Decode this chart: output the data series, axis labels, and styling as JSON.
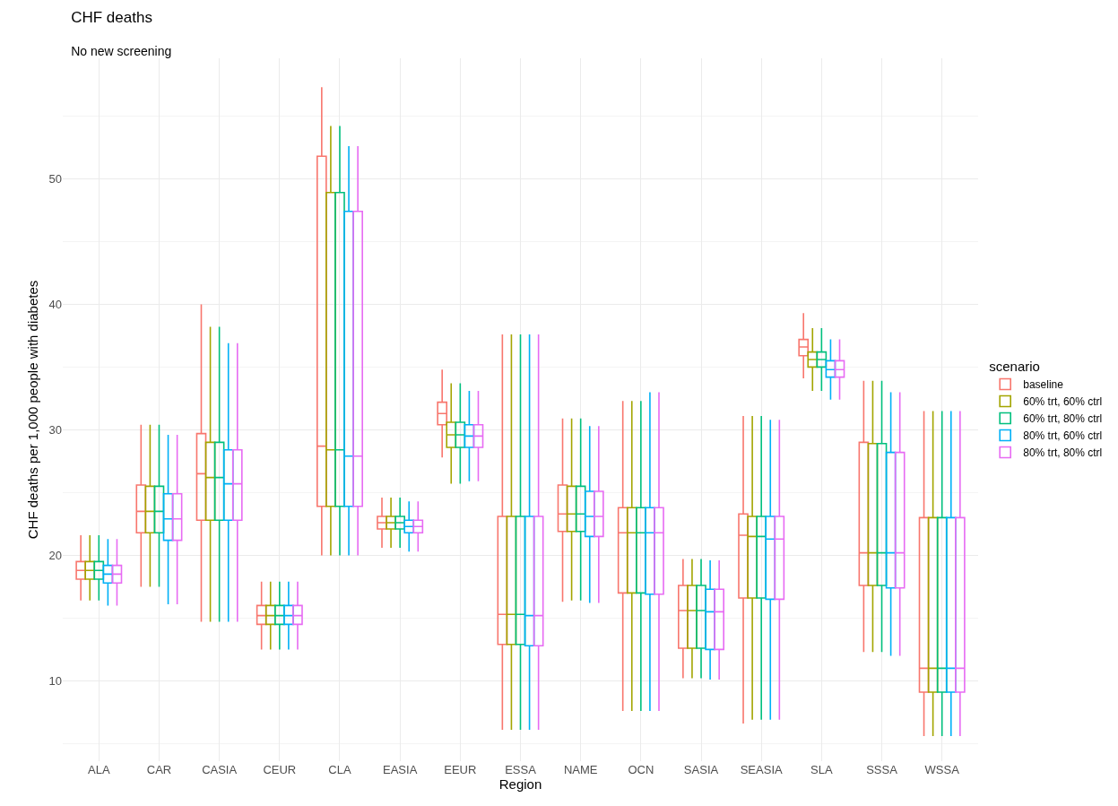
{
  "chart_data": {
    "type": "box",
    "title": "CHF deaths",
    "subtitle": "No new screening",
    "xlabel": "Region",
    "ylabel": "CHF deaths per 1,000 people with diabetes",
    "legend_title": "scenario",
    "legend": "right",
    "grid": true,
    "categories": [
      "ALA",
      "CAR",
      "CASIA",
      "CEUR",
      "CLA",
      "EASIA",
      "EEUR",
      "ESSA",
      "NAME",
      "OCN",
      "SASIA",
      "SEASIA",
      "SLA",
      "SSSA",
      "WSSA"
    ],
    "ylim": [
      3.6,
      59.6
    ],
    "yticks": [
      10,
      20,
      30,
      40,
      50
    ],
    "series": [
      {
        "name": "baseline",
        "color": "#f8766d",
        "boxes": [
          {
            "low": 16.4,
            "q1": 18.1,
            "median": 18.8,
            "q3": 19.5,
            "high": 21.6
          },
          {
            "low": 17.5,
            "q1": 21.8,
            "median": 23.5,
            "q3": 25.6,
            "high": 30.4
          },
          {
            "low": 14.7,
            "q1": 22.8,
            "median": 26.5,
            "q3": 29.7,
            "high": 40.0
          },
          {
            "low": 12.5,
            "q1": 14.5,
            "median": 15.2,
            "q3": 16.0,
            "high": 17.9
          },
          {
            "low": 20.0,
            "q1": 23.9,
            "median": 28.7,
            "q3": 51.8,
            "high": 57.3
          },
          {
            "low": 20.6,
            "q1": 22.1,
            "median": 22.6,
            "q3": 23.1,
            "high": 24.6
          },
          {
            "low": 27.8,
            "q1": 30.4,
            "median": 31.3,
            "q3": 32.2,
            "high": 34.8
          },
          {
            "low": 6.1,
            "q1": 12.9,
            "median": 15.3,
            "q3": 23.1,
            "high": 37.6
          },
          {
            "low": 16.3,
            "q1": 21.9,
            "median": 23.3,
            "q3": 25.6,
            "high": 30.9
          },
          {
            "low": 7.6,
            "q1": 17.0,
            "median": 21.8,
            "q3": 23.8,
            "high": 32.3
          },
          {
            "low": 10.2,
            "q1": 12.6,
            "median": 15.6,
            "q3": 17.6,
            "high": 19.7
          },
          {
            "low": 6.6,
            "q1": 16.6,
            "median": 21.6,
            "q3": 23.3,
            "high": 31.1
          },
          {
            "low": 34.1,
            "q1": 35.9,
            "median": 36.6,
            "q3": 37.2,
            "high": 39.3
          },
          {
            "low": 12.3,
            "q1": 17.6,
            "median": 20.2,
            "q3": 29.0,
            "high": 33.9
          },
          {
            "low": 5.6,
            "q1": 9.1,
            "median": 11.0,
            "q3": 23.0,
            "high": 31.5
          }
        ]
      },
      {
        "name": "60% trt, 60% ctrl",
        "color": "#a3a500",
        "boxes": [
          {
            "low": 16.4,
            "q1": 18.1,
            "median": 18.8,
            "q3": 19.5,
            "high": 21.6
          },
          {
            "low": 17.5,
            "q1": 21.8,
            "median": 23.5,
            "q3": 25.5,
            "high": 30.4
          },
          {
            "low": 14.7,
            "q1": 22.8,
            "median": 26.2,
            "q3": 29.0,
            "high": 38.2
          },
          {
            "low": 12.5,
            "q1": 14.5,
            "median": 15.2,
            "q3": 16.0,
            "high": 17.9
          },
          {
            "low": 20.0,
            "q1": 23.9,
            "median": 28.4,
            "q3": 48.9,
            "high": 54.2
          },
          {
            "low": 20.6,
            "q1": 22.1,
            "median": 22.6,
            "q3": 23.1,
            "high": 24.6
          },
          {
            "low": 25.7,
            "q1": 28.6,
            "median": 29.6,
            "q3": 30.6,
            "high": 33.7
          },
          {
            "low": 6.1,
            "q1": 12.9,
            "median": 15.3,
            "q3": 23.1,
            "high": 37.6
          },
          {
            "low": 16.4,
            "q1": 21.9,
            "median": 23.3,
            "q3": 25.5,
            "high": 30.9
          },
          {
            "low": 7.6,
            "q1": 17.0,
            "median": 21.8,
            "q3": 23.8,
            "high": 32.3
          },
          {
            "low": 10.2,
            "q1": 12.6,
            "median": 15.6,
            "q3": 17.6,
            "high": 19.7
          },
          {
            "low": 6.9,
            "q1": 16.6,
            "median": 21.5,
            "q3": 23.1,
            "high": 31.1
          },
          {
            "low": 33.1,
            "q1": 35.0,
            "median": 35.6,
            "q3": 36.2,
            "high": 38.1
          },
          {
            "low": 12.3,
            "q1": 17.6,
            "median": 20.2,
            "q3": 28.9,
            "high": 33.9
          },
          {
            "low": 5.6,
            "q1": 9.1,
            "median": 11.0,
            "q3": 23.0,
            "high": 31.5
          }
        ]
      },
      {
        "name": "60% trt, 80% ctrl",
        "color": "#00bf7d",
        "boxes": [
          {
            "low": 16.4,
            "q1": 18.1,
            "median": 18.8,
            "q3": 19.5,
            "high": 21.6
          },
          {
            "low": 17.5,
            "q1": 21.8,
            "median": 23.5,
            "q3": 25.5,
            "high": 30.4
          },
          {
            "low": 14.7,
            "q1": 22.8,
            "median": 26.2,
            "q3": 29.0,
            "high": 38.2
          },
          {
            "low": 12.5,
            "q1": 14.5,
            "median": 15.2,
            "q3": 16.0,
            "high": 17.9
          },
          {
            "low": 20.0,
            "q1": 23.9,
            "median": 28.4,
            "q3": 48.9,
            "high": 54.2
          },
          {
            "low": 20.6,
            "q1": 22.1,
            "median": 22.6,
            "q3": 23.1,
            "high": 24.6
          },
          {
            "low": 25.7,
            "q1": 28.6,
            "median": 29.6,
            "q3": 30.6,
            "high": 33.7
          },
          {
            "low": 6.1,
            "q1": 12.9,
            "median": 15.3,
            "q3": 23.1,
            "high": 37.6
          },
          {
            "low": 16.4,
            "q1": 21.9,
            "median": 23.3,
            "q3": 25.5,
            "high": 30.9
          },
          {
            "low": 7.6,
            "q1": 17.0,
            "median": 21.8,
            "q3": 23.8,
            "high": 32.3
          },
          {
            "low": 10.2,
            "q1": 12.6,
            "median": 15.6,
            "q3": 17.6,
            "high": 19.7
          },
          {
            "low": 6.9,
            "q1": 16.6,
            "median": 21.5,
            "q3": 23.1,
            "high": 31.1
          },
          {
            "low": 33.1,
            "q1": 35.0,
            "median": 35.6,
            "q3": 36.2,
            "high": 38.1
          },
          {
            "low": 12.3,
            "q1": 17.6,
            "median": 20.2,
            "q3": 28.9,
            "high": 33.9
          },
          {
            "low": 5.6,
            "q1": 9.1,
            "median": 11.0,
            "q3": 23.0,
            "high": 31.5
          }
        ]
      },
      {
        "name": "80% trt, 60% ctrl",
        "color": "#00b0f6",
        "boxes": [
          {
            "low": 16.0,
            "q1": 17.8,
            "median": 18.5,
            "q3": 19.2,
            "high": 21.3
          },
          {
            "low": 16.1,
            "q1": 21.2,
            "median": 22.9,
            "q3": 24.9,
            "high": 29.6
          },
          {
            "low": 14.7,
            "q1": 22.8,
            "median": 25.7,
            "q3": 28.4,
            "high": 36.9
          },
          {
            "low": 12.5,
            "q1": 14.5,
            "median": 15.2,
            "q3": 16.0,
            "high": 17.9
          },
          {
            "low": 20.0,
            "q1": 23.9,
            "median": 27.9,
            "q3": 47.4,
            "high": 52.6
          },
          {
            "low": 20.3,
            "q1": 21.8,
            "median": 22.3,
            "q3": 22.8,
            "high": 24.3
          },
          {
            "low": 25.9,
            "q1": 28.6,
            "median": 29.5,
            "q3": 30.4,
            "high": 33.1
          },
          {
            "low": 6.1,
            "q1": 12.8,
            "median": 15.2,
            "q3": 23.1,
            "high": 37.6
          },
          {
            "low": 16.2,
            "q1": 21.5,
            "median": 23.1,
            "q3": 25.1,
            "high": 30.3
          },
          {
            "low": 7.6,
            "q1": 16.9,
            "median": 21.8,
            "q3": 23.8,
            "high": 33.0
          },
          {
            "low": 10.1,
            "q1": 12.5,
            "median": 15.5,
            "q3": 17.3,
            "high": 19.6
          },
          {
            "low": 6.9,
            "q1": 16.5,
            "median": 21.3,
            "q3": 23.1,
            "high": 30.8
          },
          {
            "low": 32.4,
            "q1": 34.2,
            "median": 34.8,
            "q3": 35.5,
            "high": 37.2
          },
          {
            "low": 12.0,
            "q1": 17.4,
            "median": 20.2,
            "q3": 28.2,
            "high": 33.0
          },
          {
            "low": 5.6,
            "q1": 9.1,
            "median": 11.0,
            "q3": 23.0,
            "high": 31.5
          }
        ]
      },
      {
        "name": "80% trt, 80% ctrl",
        "color": "#e76bf3",
        "boxes": [
          {
            "low": 16.0,
            "q1": 17.8,
            "median": 18.5,
            "q3": 19.2,
            "high": 21.3
          },
          {
            "low": 16.1,
            "q1": 21.2,
            "median": 22.9,
            "q3": 24.9,
            "high": 29.6
          },
          {
            "low": 14.7,
            "q1": 22.8,
            "median": 25.7,
            "q3": 28.4,
            "high": 36.9
          },
          {
            "low": 12.5,
            "q1": 14.5,
            "median": 15.2,
            "q3": 16.0,
            "high": 17.9
          },
          {
            "low": 20.0,
            "q1": 23.9,
            "median": 27.9,
            "q3": 47.4,
            "high": 52.6
          },
          {
            "low": 20.3,
            "q1": 21.8,
            "median": 22.3,
            "q3": 22.8,
            "high": 24.3
          },
          {
            "low": 25.9,
            "q1": 28.6,
            "median": 29.5,
            "q3": 30.4,
            "high": 33.1
          },
          {
            "low": 6.1,
            "q1": 12.8,
            "median": 15.2,
            "q3": 23.1,
            "high": 37.6
          },
          {
            "low": 16.2,
            "q1": 21.5,
            "median": 23.1,
            "q3": 25.1,
            "high": 30.3
          },
          {
            "low": 7.6,
            "q1": 16.9,
            "median": 21.8,
            "q3": 23.8,
            "high": 33.0
          },
          {
            "low": 10.1,
            "q1": 12.5,
            "median": 15.5,
            "q3": 17.3,
            "high": 19.6
          },
          {
            "low": 6.9,
            "q1": 16.5,
            "median": 21.3,
            "q3": 23.1,
            "high": 30.8
          },
          {
            "low": 32.4,
            "q1": 34.2,
            "median": 34.8,
            "q3": 35.5,
            "high": 37.2
          },
          {
            "low": 12.0,
            "q1": 17.4,
            "median": 20.2,
            "q3": 28.2,
            "high": 33.0
          },
          {
            "low": 5.6,
            "q1": 9.1,
            "median": 11.0,
            "q3": 23.0,
            "high": 31.5
          }
        ]
      }
    ]
  }
}
